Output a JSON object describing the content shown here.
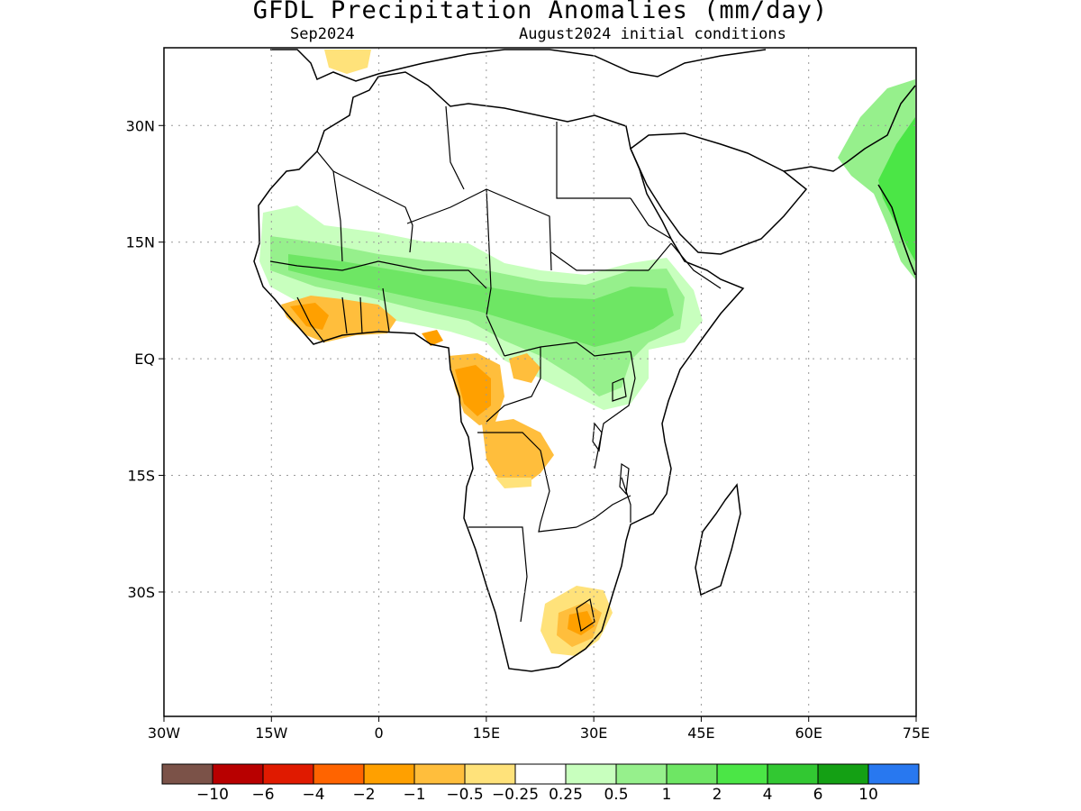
{
  "title": "GFDL Precipitation Anomalies (mm/day)",
  "subtitle_left": "Sep2024",
  "subtitle_right": "August2024 initial conditions",
  "map": {
    "lon_range": [
      -30,
      75
    ],
    "lat_range": [
      -46,
      40
    ],
    "x_ticks": [
      {
        "value": -30,
        "label": "30W"
      },
      {
        "value": -15,
        "label": "15W"
      },
      {
        "value": 0,
        "label": "0"
      },
      {
        "value": 15,
        "label": "15E"
      },
      {
        "value": 30,
        "label": "30E"
      },
      {
        "value": 45,
        "label": "45E"
      },
      {
        "value": 60,
        "label": "60E"
      },
      {
        "value": 75,
        "label": "75E"
      }
    ],
    "y_ticks": [
      {
        "value": 30,
        "label": "30N"
      },
      {
        "value": 15,
        "label": "15N"
      },
      {
        "value": 0,
        "label": "EQ"
      },
      {
        "value": -15,
        "label": "15S"
      },
      {
        "value": -30,
        "label": "30S"
      }
    ],
    "grid": "dotted"
  },
  "colorbar": {
    "colors": [
      "#7b5248",
      "#b80000",
      "#e01a00",
      "#ff6400",
      "#ffa000",
      "#ffbe3c",
      "#ffe27a",
      "#ffffff",
      "#c8ffbe",
      "#96f08c",
      "#6ee664",
      "#4be646",
      "#32c832",
      "#14a014",
      "#2878f0"
    ],
    "labels": [
      "-10",
      "-6",
      "-4",
      "-2",
      "-1",
      "-0.5",
      "-0.25",
      "0.25",
      "0.5",
      "1",
      "2",
      "4",
      "6",
      "10"
    ]
  }
}
